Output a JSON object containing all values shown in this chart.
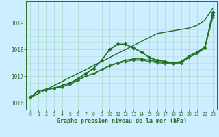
{
  "x": [
    0,
    1,
    2,
    3,
    4,
    5,
    6,
    7,
    8,
    9,
    10,
    11,
    12,
    13,
    14,
    15,
    16,
    17,
    18,
    19,
    20,
    21,
    22,
    23
  ],
  "series": [
    {
      "y": [
        1016.2,
        1016.35,
        1016.5,
        1016.65,
        1016.8,
        1016.95,
        1017.1,
        1017.25,
        1017.4,
        1017.55,
        1017.7,
        1017.85,
        1018.0,
        1018.15,
        1018.3,
        1018.45,
        1018.6,
        1018.65,
        1018.7,
        1018.75,
        1018.8,
        1018.9,
        1019.1,
        1019.55
      ],
      "color": "#1a6b1a",
      "lw": 1.0,
      "marker": null
    },
    {
      "y": [
        1016.2,
        1016.45,
        1016.5,
        1016.55,
        1016.65,
        1016.75,
        1016.9,
        1017.1,
        1017.3,
        1017.6,
        1018.0,
        1018.2,
        1018.2,
        1018.05,
        1017.9,
        1017.7,
        1017.6,
        1017.55,
        1017.5,
        1017.5,
        1017.75,
        1017.9,
        1018.05,
        1019.4
      ],
      "color": "#1a6b1a",
      "lw": 1.2,
      "marker": "D",
      "markersize": 2.5
    },
    {
      "y": [
        1016.2,
        1016.45,
        1016.5,
        1016.55,
        1016.6,
        1016.7,
        1016.85,
        1017.0,
        1017.1,
        1017.25,
        1017.4,
        1017.5,
        1017.6,
        1017.65,
        1017.65,
        1017.6,
        1017.55,
        1017.5,
        1017.5,
        1017.55,
        1017.75,
        1017.9,
        1018.1,
        1019.3
      ],
      "color": "#1a6b1a",
      "lw": 1.0,
      "marker": "D",
      "markersize": 2.0
    },
    {
      "y": [
        1016.2,
        1016.45,
        1016.5,
        1016.55,
        1016.6,
        1016.7,
        1016.85,
        1017.0,
        1017.1,
        1017.25,
        1017.38,
        1017.48,
        1017.55,
        1017.6,
        1017.6,
        1017.55,
        1017.5,
        1017.48,
        1017.47,
        1017.5,
        1017.7,
        1017.85,
        1018.05,
        1019.2
      ],
      "color": "#2d7a2d",
      "lw": 0.9,
      "marker": "D",
      "markersize": 1.8
    }
  ],
  "xlim": [
    -0.5,
    23.5
  ],
  "ylim": [
    1015.75,
    1019.8
  ],
  "yticks": [
    1016,
    1017,
    1018,
    1019
  ],
  "xticks": [
    0,
    1,
    2,
    3,
    4,
    5,
    6,
    7,
    8,
    9,
    10,
    11,
    12,
    13,
    14,
    15,
    16,
    17,
    18,
    19,
    20,
    21,
    22,
    23
  ],
  "xlabel": "Graphe pression niveau de la mer (hPa)",
  "bg_color": "#cceeff",
  "grid_color": "#b0ddd0",
  "axis_color": "#2d6b2d"
}
